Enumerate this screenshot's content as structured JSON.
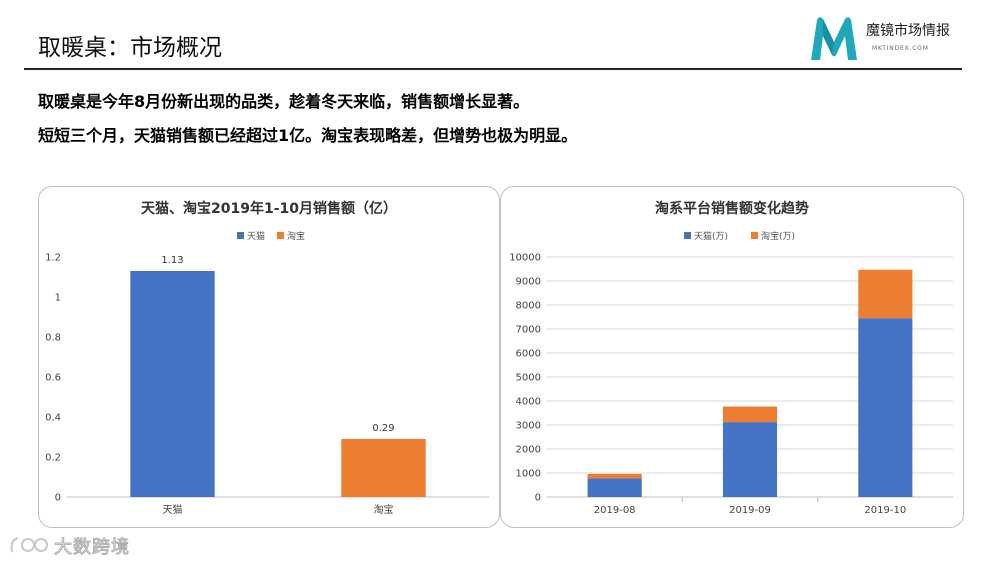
{
  "page": {
    "title": "取暖桌：市场概况",
    "brand_name": "魔镜市场情报",
    "brand_url": "MKTINDEX.COM",
    "summary_lines": [
      "取暖桌是今年8月份新出现的品类，趁着冬天来临，销售额增长显著。",
      "短短三个月，天猫销售额已经超过1亿。淘宝表现略差，但增势也极为明显。"
    ],
    "watermark": "大数跨境",
    "colors": {
      "blue": "#4472C4",
      "orange": "#ED7D31",
      "brand_teal": "#1FA9B8"
    }
  },
  "chart_data": [
    {
      "type": "bar",
      "title": "天猫、淘宝2019年1-10月销售额（亿）",
      "categories": [
        "天猫",
        "淘宝"
      ],
      "legend": [
        "天猫",
        "淘宝"
      ],
      "legend_position": "top",
      "series": [
        {
          "name": "天猫",
          "values": [
            1.13,
            null
          ],
          "color": "#4472C4"
        },
        {
          "name": "淘宝",
          "values": [
            null,
            0.29
          ],
          "color": "#ED7D31"
        }
      ],
      "data_labels": [
        "1.13",
        "0.29"
      ],
      "yticks": [
        "0",
        "0.2",
        "0.4",
        "0.6",
        "0.8",
        "1",
        "1.2"
      ],
      "ylim": [
        0,
        1.2
      ],
      "grid": false
    },
    {
      "type": "bar",
      "stacked": true,
      "title": "淘系平台销售额变化趋势",
      "categories": [
        "2019-08",
        "2019-09",
        "2019-10"
      ],
      "legend": [
        "天猫(万)",
        "淘宝(万)"
      ],
      "legend_position": "top",
      "series": [
        {
          "name": "天猫(万)",
          "values": [
            780,
            3120,
            7450
          ],
          "color": "#4472C4"
        },
        {
          "name": "淘宝(万)",
          "values": [
            180,
            650,
            2020
          ],
          "color": "#ED7D31"
        }
      ],
      "yticks": [
        "0",
        "1000",
        "2000",
        "3000",
        "4000",
        "5000",
        "6000",
        "7000",
        "8000",
        "9000",
        "10000"
      ],
      "ylim": [
        0,
        10000
      ],
      "grid": true
    }
  ]
}
